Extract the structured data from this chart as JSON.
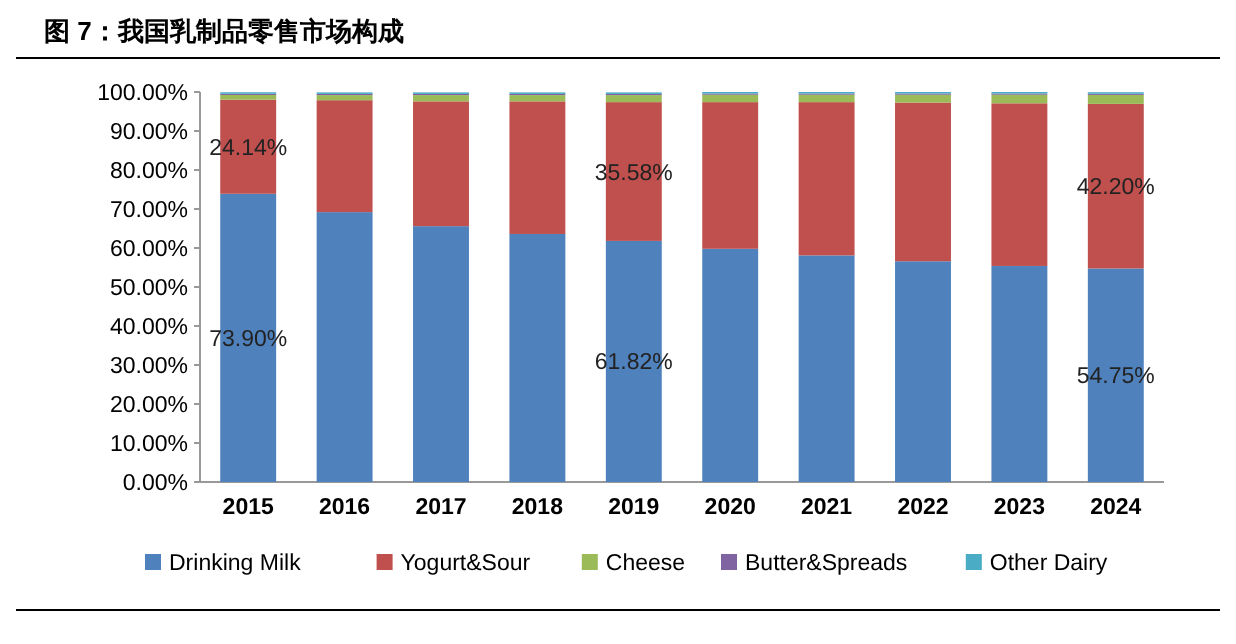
{
  "chart_data": {
    "type": "bar",
    "title": "图 7：我国乳制品零售市场构成",
    "stacked": true,
    "categories": [
      "2015",
      "2016",
      "2017",
      "2018",
      "2019",
      "2020",
      "2021",
      "2022",
      "2023",
      "2024"
    ],
    "series": [
      {
        "name": "Drinking Milk",
        "color": "#4f81bd",
        "values": [
          73.9,
          69.2,
          65.6,
          63.6,
          61.82,
          59.8,
          58.1,
          56.6,
          55.4,
          54.75
        ],
        "value_labels": [
          "73.90%",
          null,
          null,
          null,
          "61.82%",
          null,
          null,
          null,
          null,
          "54.75%"
        ]
      },
      {
        "name": "Yogurt&Sour",
        "color": "#c0504d",
        "values": [
          24.14,
          28.7,
          32.0,
          34.0,
          35.58,
          37.6,
          39.3,
          40.7,
          41.7,
          42.2
        ],
        "value_labels": [
          "24.14%",
          null,
          null,
          null,
          "35.58%",
          null,
          null,
          null,
          null,
          "42.20%"
        ]
      },
      {
        "name": "Cheese",
        "color": "#9bbb59",
        "values": [
          1.2,
          1.3,
          1.6,
          1.6,
          1.8,
          1.9,
          1.9,
          2.0,
          2.2,
          2.3
        ]
      },
      {
        "name": "Butter&Spreads",
        "color": "#8064a2",
        "values": [
          0.3,
          0.3,
          0.3,
          0.3,
          0.3,
          0.3,
          0.3,
          0.3,
          0.3,
          0.3
        ]
      },
      {
        "name": "Other Dairy",
        "color": "#4bacc6",
        "values": [
          0.4,
          0.4,
          0.4,
          0.4,
          0.4,
          0.4,
          0.4,
          0.4,
          0.4,
          0.4
        ]
      }
    ],
    "ylim": [
      0,
      100
    ],
    "yticks": [
      {
        "value": 0,
        "label": "0.00%"
      },
      {
        "value": 10,
        "label": "10.00%"
      },
      {
        "value": 20,
        "label": "20.00%"
      },
      {
        "value": 30,
        "label": "30.00%"
      },
      {
        "value": 40,
        "label": "40.00%"
      },
      {
        "value": 50,
        "label": "50.00%"
      },
      {
        "value": 60,
        "label": "60.00%"
      },
      {
        "value": 70,
        "label": "70.00%"
      },
      {
        "value": 80,
        "label": "80.00%"
      },
      {
        "value": 90,
        "label": "90.00%"
      },
      {
        "value": 100,
        "label": "100.00%"
      }
    ],
    "legend": "bottom"
  }
}
